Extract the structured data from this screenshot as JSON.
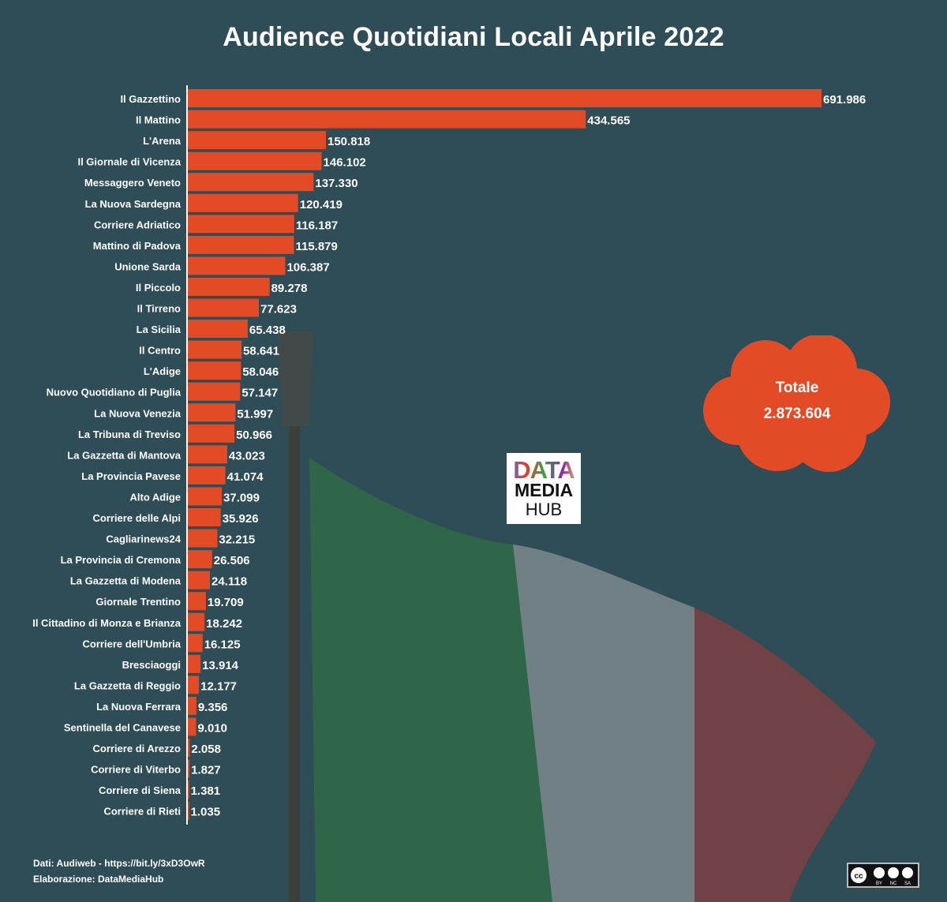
{
  "title": "Audience Quotidiani Locali Aprile 2022",
  "total": {
    "label": "Totale",
    "value": "2.873.604"
  },
  "logo": {
    "line1": "DATA",
    "line2": "MEDIA",
    "line3": "HUB"
  },
  "footer": {
    "source": "Dati: Audiweb - https://bit.ly/3xD3OwR",
    "credit": "Elaborazione: DataMediaHub"
  },
  "license": {
    "cc": "cc",
    "by": "BY",
    "nc": "NC",
    "sa": "SA"
  },
  "colors": {
    "bar": "#e34b26",
    "background": "#2e4d57",
    "text": "#ffffff",
    "flag_green": "#2f6b47",
    "flag_white": "#7d8a8d",
    "flag_red": "#7b3f42"
  },
  "chart_data": {
    "type": "bar",
    "orientation": "horizontal",
    "title": "Audience Quotidiani Locali Aprile 2022",
    "categories": [
      "Il Gazzettino",
      "Il Mattino",
      "L'Arena",
      "Il Giornale di Vicenza",
      "Messaggero Veneto",
      "La Nuova Sardegna",
      "Corriere Adriatico",
      "Mattino di Padova",
      "Unione Sarda",
      "Il Piccolo",
      "Il Tirreno",
      "La Sicilia",
      "Il Centro",
      "L'Adige",
      "Nuovo Quotidiano di Puglia",
      "La Nuova Venezia",
      "La Tribuna di Treviso",
      "La Gazzetta di Mantova",
      "La Provincia Pavese",
      "Alto Adige",
      "Corriere delle Alpi",
      "Cagliarinews24",
      "La Provincia di Cremona",
      "La Gazzetta di Modena",
      "Giornale Trentino",
      "Il Cittadino di Monza e Brianza",
      "Corriere dell'Umbria",
      "Bresciaoggi",
      "La Gazzetta di Reggio",
      "La Nuova Ferrara",
      "Sentinella del Canavese",
      "Corriere di Arezzo",
      "Corriere di Viterbo",
      "Corriere di Siena",
      "Corriere di Rieti"
    ],
    "values": [
      691986,
      434565,
      150818,
      146102,
      137330,
      120419,
      116187,
      115879,
      106387,
      89278,
      77623,
      65438,
      58641,
      58046,
      57147,
      51997,
      50966,
      43023,
      41074,
      37099,
      35926,
      32215,
      26506,
      24118,
      19709,
      18242,
      16125,
      13914,
      12177,
      9356,
      9010,
      2058,
      1827,
      1381,
      1035
    ],
    "value_labels": [
      "691.986",
      "434.565",
      "150.818",
      "146.102",
      "137.330",
      "120.419",
      "116.187",
      "115.879",
      "106.387",
      "89.278",
      "77.623",
      "65.438",
      "58.641",
      "58.046",
      "57.147",
      "51.997",
      "50.966",
      "43.023",
      "41.074",
      "37.099",
      "35.926",
      "32.215",
      "26.506",
      "24.118",
      "19.709",
      "18.242",
      "16.125",
      "13.914",
      "12.177",
      "9.356",
      "9.010",
      "2.058",
      "1.827",
      "1.381",
      "1.035"
    ],
    "xlim": [
      0,
      691986
    ],
    "grid": false,
    "legend": "none"
  }
}
